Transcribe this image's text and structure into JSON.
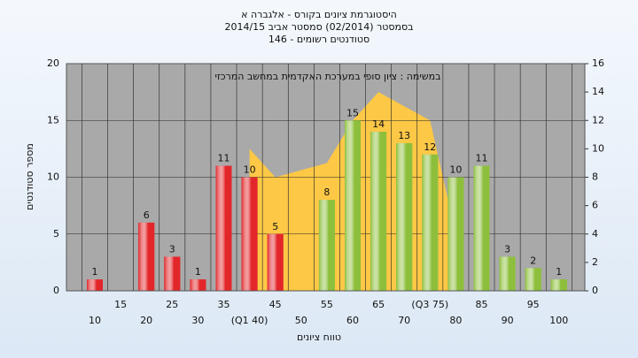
{
  "chart_data": {
    "type": "bar",
    "title": "היסטוגרמת ציונים בקורס - אלגברה א",
    "subtitle": "בסמסטר  (02/2014)  סמסטר אביב 2014/15",
    "subtitle2": "סטודנטים רשומים - 146",
    "annotation": "במשימה : ציון סופי במערכת האקדמית במחשב המרכזי",
    "xlabel": "טווח ציונים",
    "ylabel": "מספר סטודנטים",
    "categories": [
      "10",
      "15",
      "20",
      "25",
      "30",
      "35",
      "(Q1 40)",
      "45",
      "50",
      "55",
      "60",
      "65",
      "70",
      "(Q3 75)",
      "80",
      "85",
      "90",
      "95",
      "100"
    ],
    "values": [
      1,
      0,
      6,
      3,
      1,
      11,
      10,
      5,
      0,
      8,
      15,
      14,
      13,
      12,
      10,
      11,
      3,
      2,
      1
    ],
    "colors": [
      "#e2262a",
      "#e2262a",
      "#e2262a",
      "#e2262a",
      "#e2262a",
      "#e2262a",
      "#e2262a",
      "#e2262a",
      "#e2262a",
      "#8dbf3c",
      "#8dbf3c",
      "#8dbf3c",
      "#8dbf3c",
      "#8dbf3c",
      "#8dbf3c",
      "#8dbf3c",
      "#8dbf3c",
      "#8dbf3c",
      "#8dbf3c"
    ],
    "area": {
      "color": "#fcc846",
      "axis": "y2",
      "values": [
        null,
        null,
        null,
        null,
        null,
        null,
        10,
        8,
        8.5,
        9,
        12,
        14,
        13,
        12,
        4,
        null,
        null,
        null,
        null
      ]
    },
    "ylim": [
      0,
      20
    ],
    "yticks": [
      0,
      5,
      10,
      15,
      20
    ],
    "y2lim": [
      0,
      16
    ],
    "y2ticks": [
      0,
      2,
      4,
      6,
      8,
      10,
      12,
      14,
      16
    ],
    "grid": true
  }
}
